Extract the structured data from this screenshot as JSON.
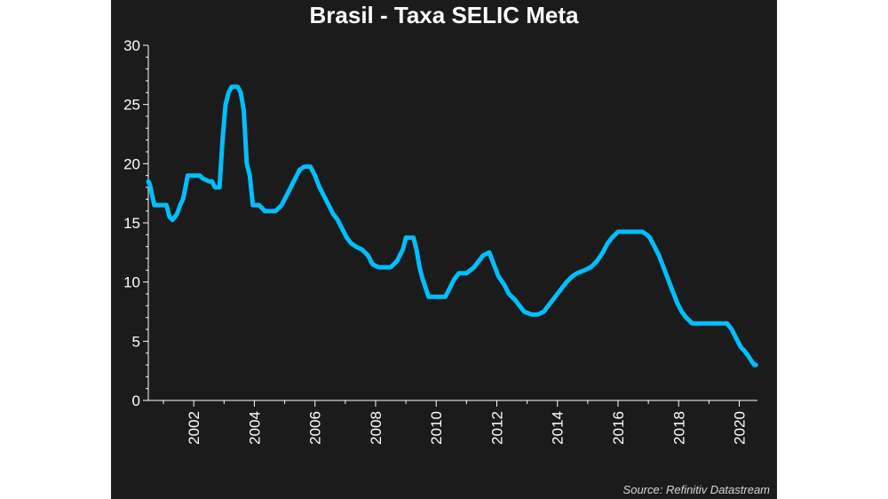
{
  "chart_data": {
    "type": "line",
    "title": "Brasil - Taxa SELIC Meta",
    "source": "Source: Refinitiv Datastream",
    "xlabel": "",
    "ylabel": "",
    "ylim": [
      0,
      30
    ],
    "xlim": [
      2000.5,
      2020.6
    ],
    "y_ticks": [
      0,
      5,
      10,
      15,
      20,
      25,
      30
    ],
    "x_ticks": [
      2002,
      2004,
      2006,
      2008,
      2010,
      2012,
      2014,
      2016,
      2018,
      2020
    ],
    "grid": false,
    "legend": "none",
    "colors": {
      "line": "#00bfff",
      "background": "#1b1b1b",
      "axis": "#ffffff"
    },
    "series": [
      {
        "x": [
          2000.5,
          2000.55,
          2000.7,
          2000.9,
          2001.0,
          2001.1,
          2001.2,
          2001.3,
          2001.45,
          2001.55,
          2001.65,
          2001.8,
          2002.0,
          2002.2,
          2002.3,
          2002.5,
          2002.6,
          2002.7,
          2002.8,
          2002.85,
          2002.95,
          2003.05,
          2003.15,
          2003.25,
          2003.35,
          2003.45,
          2003.55,
          2003.65,
          2003.75,
          2003.85,
          2003.95,
          2004.05,
          2004.15,
          2004.35,
          2004.5,
          2004.7,
          2004.9,
          2005.1,
          2005.3,
          2005.5,
          2005.65,
          2005.85,
          2006.0,
          2006.15,
          2006.3,
          2006.45,
          2006.6,
          2006.75,
          2006.9,
          2007.05,
          2007.2,
          2007.35,
          2007.55,
          2007.75,
          2007.9,
          2008.1,
          2008.3,
          2008.5,
          2008.7,
          2008.9,
          2009.0,
          2009.1,
          2009.25,
          2009.35,
          2009.45,
          2009.55,
          2009.65,
          2009.75,
          2010.0,
          2010.3,
          2010.45,
          2010.6,
          2010.75,
          2011.0,
          2011.25,
          2011.4,
          2011.55,
          2011.75,
          2011.9,
          2012.05,
          2012.25,
          2012.4,
          2012.6,
          2012.75,
          2012.9,
          2013.15,
          2013.35,
          2013.55,
          2013.7,
          2013.85,
          2014.0,
          2014.15,
          2014.3,
          2014.5,
          2014.65,
          2014.9,
          2015.1,
          2015.3,
          2015.5,
          2015.65,
          2015.8,
          2016.0,
          2016.5,
          2016.8,
          2016.95,
          2017.05,
          2017.2,
          2017.35,
          2017.5,
          2017.65,
          2017.8,
          2017.95,
          2018.1,
          2018.25,
          2018.45,
          2018.7,
          2019.0,
          2019.3,
          2019.6,
          2019.75,
          2019.85,
          2019.95,
          2020.05,
          2020.15,
          2020.3,
          2020.42,
          2020.5,
          2020.55
        ],
        "values": [
          18.5,
          18.25,
          16.5,
          16.5,
          16.5,
          16.5,
          15.5,
          15.25,
          15.75,
          16.5,
          17.0,
          19.0,
          19.0,
          19.0,
          18.75,
          18.5,
          18.5,
          18.0,
          18.0,
          18.0,
          22.0,
          25.0,
          26.0,
          26.5,
          26.5,
          26.5,
          26.0,
          24.5,
          20.0,
          19.0,
          16.5,
          16.5,
          16.5,
          16.0,
          16.0,
          16.0,
          16.5,
          17.5,
          18.5,
          19.5,
          19.75,
          19.75,
          19.0,
          18.0,
          17.25,
          16.5,
          15.75,
          15.25,
          14.5,
          13.75,
          13.25,
          13.0,
          12.75,
          12.25,
          11.5,
          11.25,
          11.25,
          11.25,
          11.75,
          12.75,
          13.75,
          13.75,
          13.75,
          12.75,
          11.25,
          10.25,
          9.5,
          8.75,
          8.75,
          8.75,
          9.5,
          10.25,
          10.75,
          10.75,
          11.25,
          11.75,
          12.25,
          12.5,
          11.5,
          10.5,
          9.75,
          9.0,
          8.5,
          8.0,
          7.5,
          7.25,
          7.25,
          7.5,
          8.0,
          8.5,
          9.0,
          9.5,
          10.0,
          10.5,
          10.75,
          11.0,
          11.25,
          11.75,
          12.5,
          13.25,
          13.75,
          14.25,
          14.25,
          14.25,
          14.0,
          13.75,
          13.0,
          12.25,
          11.25,
          10.25,
          9.25,
          8.25,
          7.5,
          7.0,
          6.5,
          6.5,
          6.5,
          6.5,
          6.5,
          6.0,
          5.5,
          5.0,
          4.5,
          4.25,
          3.75,
          3.25,
          3.0,
          3.0
        ]
      }
    ]
  }
}
